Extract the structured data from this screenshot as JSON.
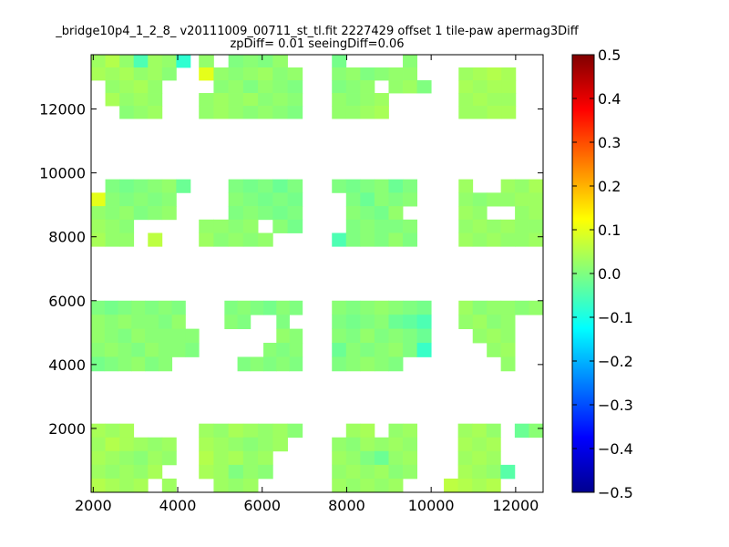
{
  "chart_data": {
    "type": "heatmap",
    "title": "_bridge10p4_1_2_8_ v20111009_00711_st_tl.fit 2227429 offset 1 tile-paw apermag3Diff",
    "subtitle": "zpDiff= 0.01 seeingDiff=0.06",
    "xlabel": "",
    "ylabel": "",
    "xlim": [
      1950,
      12650
    ],
    "ylim": [
      0,
      13700
    ],
    "xticks": [
      2000,
      4000,
      6000,
      8000,
      10000,
      12000
    ],
    "yticks": [
      2000,
      4000,
      6000,
      8000,
      10000,
      12000
    ],
    "colormap": "jet",
    "colorbar": {
      "vmin": -0.5,
      "vmax": 0.5,
      "ticks": [
        "0.5",
        "0.4",
        "0.3",
        "0.2",
        "0.1",
        "0.0",
        "−0.1",
        "−0.2",
        "−0.3",
        "−0.4",
        "−0.5"
      ]
    },
    "cell_size": {
      "dx": 333,
      "dy": 450
    },
    "blocks": [
      {
        "row": "top",
        "x": [
          1950,
          4300
        ],
        "y": [
          11700,
          13700
        ],
        "values": [
          [
            0.03,
            0.05,
            0.02,
            -0.05,
            0.03,
            0.02,
            -0.08
          ],
          [
            0.04,
            0.03,
            0.04,
            0.02,
            0.03,
            0.01,
            null
          ],
          [
            null,
            0.02,
            0.03,
            0.04,
            0.02,
            null,
            null
          ],
          [
            null,
            0.04,
            0.02,
            0.03,
            0.02,
            null,
            null
          ],
          [
            null,
            null,
            0.01,
            0.02,
            0.03,
            null,
            null
          ]
        ]
      },
      {
        "row": "top",
        "x": [
          4500,
          6950
        ],
        "y": [
          11700,
          13700
        ],
        "values": [
          [
            0.02,
            null,
            0.0,
            0.01,
            0.0,
            0.02,
            null
          ],
          [
            0.1,
            0.02,
            0.01,
            0.02,
            0.03,
            0.01,
            0.02
          ],
          [
            null,
            0.01,
            0.02,
            0.0,
            0.02,
            0.01,
            0.0
          ],
          [
            0.02,
            0.03,
            0.02,
            0.03,
            0.01,
            0.02,
            0.01
          ],
          [
            0.02,
            0.03,
            0.02,
            0.01,
            0.02,
            0.01,
            0.0
          ]
        ]
      },
      {
        "row": "top",
        "x": [
          7650,
          10000
        ],
        "y": [
          11700,
          13700
        ],
        "values": [
          [
            -0.01,
            null,
            null,
            null,
            null,
            0.01,
            null
          ],
          [
            0.01,
            0.02,
            0.0,
            0.01,
            0.02,
            0.02,
            null
          ],
          [
            0.0,
            0.01,
            0.02,
            null,
            0.02,
            0.03,
            0.0
          ],
          [
            0.02,
            0.01,
            0.02,
            0.03,
            null,
            null,
            null
          ],
          [
            0.02,
            0.02,
            0.03,
            0.04,
            null,
            null,
            null
          ]
        ]
      },
      {
        "row": "top",
        "x": [
          10650,
          12000
        ],
        "y": [
          11700,
          13700
        ],
        "values": [
          [
            null,
            null,
            null,
            null
          ],
          [
            0.03,
            0.04,
            0.05,
            0.04
          ],
          [
            0.04,
            0.03,
            0.04,
            0.04
          ],
          [
            0.03,
            0.04,
            0.03,
            0.03
          ],
          [
            0.03,
            0.03,
            0.04,
            0.04
          ]
        ]
      },
      {
        "row": "upper-middle",
        "x": [
          1950,
          4300
        ],
        "y": [
          7700,
          9800
        ],
        "values": [
          [
            null,
            0.0,
            -0.01,
            0.0,
            0.01,
            0.02,
            -0.02
          ],
          [
            0.1,
            0.01,
            0.0,
            0.01,
            0.0,
            0.01,
            null
          ],
          [
            0.02,
            0.01,
            0.02,
            0.0,
            0.01,
            0.02,
            null
          ],
          [
            0.03,
            0.02,
            0.01,
            null,
            null,
            null,
            null
          ],
          [
            0.04,
            0.02,
            0.02,
            null,
            0.06,
            null,
            null
          ]
        ]
      },
      {
        "row": "upper-middle",
        "x": [
          4500,
          6950
        ],
        "y": [
          7700,
          9800
        ],
        "values": [
          [
            null,
            null,
            0.0,
            -0.01,
            0.0,
            -0.02,
            0.0
          ],
          [
            null,
            null,
            0.01,
            0.0,
            -0.01,
            0.0,
            -0.01
          ],
          [
            null,
            null,
            0.0,
            0.01,
            0.0,
            -0.01,
            0.0
          ],
          [
            0.02,
            0.02,
            0.01,
            0.02,
            null,
            0.01,
            -0.01
          ],
          [
            0.03,
            0.01,
            0.02,
            0.01,
            0.02,
            null,
            null
          ]
        ]
      },
      {
        "row": "upper-middle",
        "x": [
          7650,
          10000
        ],
        "y": [
          7700,
          9800
        ],
        "values": [
          [
            0.0,
            -0.01,
            0.0,
            0.01,
            -0.02,
            0.0,
            null
          ],
          [
            null,
            0.0,
            -0.02,
            0.01,
            0.0,
            0.01,
            null
          ],
          [
            null,
            0.01,
            0.0,
            -0.01,
            0.02,
            null,
            null
          ],
          [
            null,
            0.0,
            0.01,
            0.0,
            0.0,
            0.01,
            null
          ],
          [
            -0.05,
            0.0,
            0.01,
            0.0,
            0.02,
            0.0,
            null
          ]
        ]
      },
      {
        "row": "upper-middle",
        "x": [
          10650,
          12650
        ],
        "y": [
          7700,
          9800
        ],
        "values": [
          [
            0.03,
            null,
            null,
            0.03,
            0.02,
            0.04
          ],
          [
            0.02,
            0.01,
            0.02,
            0.02,
            0.03,
            0.03
          ],
          [
            0.03,
            0.02,
            null,
            null,
            0.02,
            0.03
          ],
          [
            0.02,
            0.03,
            0.02,
            0.03,
            0.02,
            0.02
          ],
          [
            0.03,
            0.02,
            0.03,
            0.02,
            0.02,
            0.03
          ]
        ]
      },
      {
        "row": "lower-middle",
        "x": [
          1950,
          4500
        ],
        "y": [
          3800,
          6000
        ],
        "values": [
          [
            0.0,
            -0.01,
            0.0,
            0.01,
            0.0,
            0.01,
            0.0,
            null
          ],
          [
            0.02,
            0.01,
            0.02,
            0.01,
            0.01,
            0.0,
            0.02,
            null
          ],
          [
            0.02,
            0.01,
            0.0,
            0.02,
            0.01,
            0.01,
            0.01,
            0.01
          ],
          [
            0.01,
            0.02,
            0.01,
            0.0,
            0.02,
            0.01,
            0.01,
            0.0
          ],
          [
            -0.01,
            0.0,
            0.01,
            0.02,
            0.0,
            0.01,
            null,
            null
          ]
        ]
      },
      {
        "row": "lower-middle",
        "x": [
          4800,
          6950
        ],
        "y": [
          3800,
          6000
        ],
        "values": [
          [
            null,
            0.0,
            0.01,
            0.0,
            -0.01,
            0.01,
            0.0
          ],
          [
            null,
            0.01,
            0.0,
            null,
            null,
            0.0,
            null
          ],
          [
            null,
            null,
            null,
            null,
            null,
            0.02,
            0.01
          ],
          [
            null,
            null,
            null,
            null,
            0.01,
            0.0,
            0.01
          ],
          [
            null,
            null,
            0.0,
            0.01,
            0.0,
            0.01,
            0.0
          ]
        ]
      },
      {
        "row": "lower-middle",
        "x": [
          7650,
          10000
        ],
        "y": [
          3800,
          6000
        ],
        "values": [
          [
            0.01,
            0.0,
            0.01,
            0.02,
            0.01,
            0.0,
            -0.01
          ],
          [
            0.0,
            -0.01,
            0.0,
            0.01,
            -0.02,
            -0.03,
            -0.05
          ],
          [
            0.01,
            0.0,
            0.02,
            0.0,
            0.01,
            0.0,
            -0.02
          ],
          [
            -0.02,
            0.01,
            0.0,
            0.01,
            0.02,
            0.0,
            -0.07
          ],
          [
            0.0,
            0.01,
            0.02,
            0.01,
            0.0,
            null,
            null
          ]
        ]
      },
      {
        "row": "lower-middle",
        "x": [
          10650,
          12650
        ],
        "y": [
          3800,
          6000
        ],
        "values": [
          [
            0.03,
            0.01,
            0.02,
            0.02,
            0.01,
            0.02
          ],
          [
            0.02,
            0.03,
            0.01,
            0.02,
            null,
            null
          ],
          [
            null,
            0.02,
            0.03,
            0.02,
            null,
            null
          ],
          [
            null,
            null,
            0.02,
            0.03,
            null,
            null
          ],
          [
            null,
            null,
            null,
            0.02,
            null,
            null
          ]
        ]
      },
      {
        "row": "bottom",
        "x": [
          1950,
          4300
        ],
        "y": [
          0,
          2150
        ],
        "values": [
          [
            0.04,
            0.03,
            0.04,
            null,
            null,
            null,
            null
          ],
          [
            0.03,
            0.05,
            0.04,
            0.03,
            0.02,
            0.03,
            null
          ],
          [
            0.04,
            0.03,
            0.02,
            0.01,
            0.03,
            0.02,
            null
          ],
          [
            0.03,
            0.02,
            0.03,
            0.02,
            0.04,
            null,
            null
          ],
          [
            0.05,
            0.04,
            0.03,
            0.04,
            null,
            0.03,
            null
          ]
        ]
      },
      {
        "row": "bottom",
        "x": [
          4500,
          6950
        ],
        "y": [
          0,
          2150
        ],
        "values": [
          [
            0.03,
            0.02,
            0.04,
            0.03,
            0.02,
            0.03,
            0.01
          ],
          [
            0.04,
            0.03,
            0.02,
            0.01,
            0.02,
            0.03,
            null
          ],
          [
            0.05,
            0.03,
            0.04,
            0.02,
            0.03,
            null,
            null
          ],
          [
            0.04,
            0.03,
            0.0,
            0.02,
            0.01,
            null,
            null
          ],
          [
            null,
            0.03,
            0.02,
            0.03,
            null,
            null,
            null
          ]
        ]
      },
      {
        "row": "bottom",
        "x": [
          7650,
          10000
        ],
        "y": [
          0,
          2150
        ],
        "values": [
          [
            null,
            0.03,
            0.04,
            null,
            0.02,
            0.03,
            null
          ],
          [
            0.02,
            0.01,
            0.03,
            0.02,
            0.03,
            0.02,
            null
          ],
          [
            0.03,
            0.02,
            0.0,
            -0.02,
            0.02,
            0.03,
            null
          ],
          [
            0.02,
            0.03,
            0.02,
            0.03,
            0.01,
            0.02,
            null
          ],
          [
            0.03,
            0.02,
            0.03,
            0.02,
            0.03,
            null,
            null
          ]
        ]
      },
      {
        "row": "bottom",
        "x": [
          10300,
          12650
        ],
        "y": [
          0,
          2150
        ],
        "values": [
          [
            null,
            0.03,
            0.04,
            0.02,
            null,
            -0.02,
            0.01
          ],
          [
            null,
            0.04,
            0.03,
            0.04,
            null,
            null,
            null
          ],
          [
            null,
            0.03,
            0.04,
            0.03,
            null,
            null,
            null
          ],
          [
            null,
            0.04,
            0.03,
            0.02,
            -0.04,
            null,
            null
          ],
          [
            0.06,
            0.05,
            0.04,
            0.05,
            null,
            null,
            null
          ]
        ]
      }
    ]
  }
}
